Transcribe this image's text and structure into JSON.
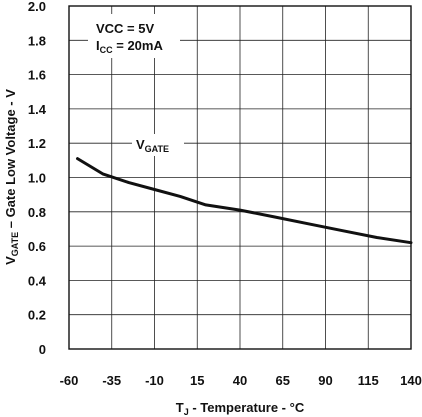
{
  "chart_data": {
    "type": "line",
    "xlabel": {
      "main": "T",
      "sub": "J",
      "rest": " - Temperature - °C"
    },
    "ylabel": {
      "main": "V",
      "sub": "GATE",
      "rest": " – Gate Low Voltage - V"
    },
    "xlim": [
      -60,
      140
    ],
    "ylim": [
      0,
      2.0
    ],
    "x_ticks": [
      "-60",
      "-35",
      "-10",
      "15",
      "40",
      "65",
      "90",
      "115",
      "140"
    ],
    "y_ticks": [
      "2.0",
      "1.8",
      "1.6",
      "1.4",
      "1.2",
      "1.0",
      "0.8",
      "0.6",
      "0.4",
      "0.2",
      "0"
    ],
    "grid": true,
    "annotations": {
      "conditions_line1": "VCC = 5V",
      "conditions_line2": {
        "main": "I",
        "sub": "CC",
        "rest": " = 20mA"
      },
      "series_label": {
        "main": "V",
        "sub": "GATE"
      }
    },
    "series": [
      {
        "x": [
          -55,
          -40,
          -25,
          -10,
          5,
          20,
          40,
          60,
          80,
          100,
          120,
          140
        ],
        "y": [
          1.11,
          1.02,
          0.97,
          0.93,
          0.89,
          0.84,
          0.81,
          0.77,
          0.73,
          0.69,
          0.65,
          0.62
        ]
      }
    ],
    "colors": {
      "line": "#111111",
      "grid": "#222222",
      "axis": "#111111"
    }
  }
}
